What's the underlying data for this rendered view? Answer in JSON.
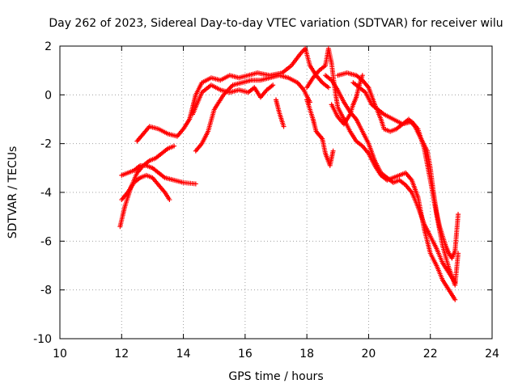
{
  "chart_data": {
    "type": "scatter",
    "title": "Day 262 of 2023, Sidereal Day-to-day VTEC variation (SDTVAR) for receiver wilu",
    "xlabel": "GPS time / hours",
    "ylabel": "SDTVAR / TECUs",
    "xlim": [
      10,
      24
    ],
    "ylim": [
      -10,
      2
    ],
    "xticks": [
      "10",
      "12",
      "14",
      "16",
      "18",
      "20",
      "22",
      "24"
    ],
    "yticks": [
      "-10",
      "-8",
      "-6",
      "-4",
      "-2",
      "0",
      "2"
    ],
    "grid": true,
    "marker": "+",
    "color": "#ff0000",
    "series": [
      {
        "name": "track-1",
        "points": [
          [
            11.95,
            -5.4
          ],
          [
            12.1,
            -4.6
          ],
          [
            12.3,
            -3.8
          ],
          [
            12.5,
            -3.2
          ],
          [
            12.7,
            -2.9
          ],
          [
            12.9,
            -2.7
          ],
          [
            13.1,
            -2.6
          ],
          [
            13.3,
            -2.4
          ],
          [
            13.5,
            -2.2
          ],
          [
            13.7,
            -2.1
          ]
        ]
      },
      {
        "name": "track-2",
        "points": [
          [
            12.0,
            -3.3
          ],
          [
            12.2,
            -3.2
          ],
          [
            12.4,
            -3.1
          ],
          [
            12.6,
            -2.9
          ],
          [
            12.8,
            -2.9
          ],
          [
            13.0,
            -3.0
          ],
          [
            13.2,
            -3.2
          ],
          [
            13.4,
            -3.4
          ],
          [
            13.7,
            -3.5
          ],
          [
            14.0,
            -3.6
          ],
          [
            14.4,
            -3.65
          ]
        ]
      },
      {
        "name": "track-3",
        "points": [
          [
            12.0,
            -4.3
          ],
          [
            12.2,
            -4.0
          ],
          [
            12.4,
            -3.6
          ],
          [
            12.6,
            -3.4
          ],
          [
            12.8,
            -3.3
          ],
          [
            13.0,
            -3.4
          ],
          [
            13.2,
            -3.7
          ],
          [
            13.4,
            -4.0
          ],
          [
            13.55,
            -4.3
          ]
        ]
      },
      {
        "name": "track-4",
        "points": [
          [
            12.5,
            -1.9
          ],
          [
            12.7,
            -1.6
          ],
          [
            12.9,
            -1.3
          ],
          [
            13.2,
            -1.4
          ],
          [
            13.5,
            -1.6
          ],
          [
            13.8,
            -1.7
          ],
          [
            14.0,
            -1.4
          ],
          [
            14.2,
            -1.0
          ],
          [
            14.3,
            -0.5
          ],
          [
            14.4,
            0.0
          ],
          [
            14.6,
            0.5
          ],
          [
            14.9,
            0.7
          ],
          [
            15.2,
            0.6
          ],
          [
            15.5,
            0.8
          ],
          [
            15.8,
            0.7
          ],
          [
            16.1,
            0.8
          ],
          [
            16.4,
            0.9
          ],
          [
            16.8,
            0.8
          ],
          [
            17.2,
            0.9
          ],
          [
            17.5,
            1.2
          ],
          [
            17.8,
            1.7
          ],
          [
            17.95,
            1.9
          ],
          [
            18.1,
            1.2
          ],
          [
            18.3,
            0.8
          ],
          [
            18.5,
            0.5
          ],
          [
            18.7,
            0.3
          ]
        ]
      },
      {
        "name": "track-5",
        "points": [
          [
            14.4,
            -2.3
          ],
          [
            14.6,
            -2.0
          ],
          [
            14.8,
            -1.5
          ],
          [
            15.0,
            -0.6
          ],
          [
            15.3,
            0.0
          ],
          [
            15.6,
            0.4
          ],
          [
            15.9,
            0.5
          ],
          [
            16.2,
            0.6
          ],
          [
            16.5,
            0.6
          ],
          [
            16.8,
            0.7
          ],
          [
            17.1,
            0.8
          ],
          [
            17.4,
            0.7
          ],
          [
            17.7,
            0.5
          ],
          [
            17.9,
            0.2
          ],
          [
            18.1,
            -0.3
          ]
        ]
      },
      {
        "name": "track-6",
        "points": [
          [
            14.3,
            -0.8
          ],
          [
            14.6,
            0.1
          ],
          [
            14.9,
            0.4
          ],
          [
            15.2,
            0.2
          ],
          [
            15.5,
            0.1
          ],
          [
            15.8,
            0.2
          ],
          [
            16.1,
            0.1
          ],
          [
            16.3,
            0.3
          ],
          [
            16.5,
            -0.1
          ],
          [
            16.7,
            0.2
          ],
          [
            16.9,
            0.4
          ]
        ]
      },
      {
        "name": "track-7",
        "points": [
          [
            17.0,
            -0.2
          ],
          [
            17.1,
            -0.7
          ],
          [
            17.25,
            -1.3
          ]
        ]
      },
      {
        "name": "track-8",
        "points": [
          [
            18.0,
            -0.2
          ],
          [
            18.1,
            -0.6
          ],
          [
            18.2,
            -1.0
          ],
          [
            18.3,
            -1.5
          ],
          [
            18.5,
            -1.8
          ],
          [
            18.6,
            -2.4
          ],
          [
            18.75,
            -2.9
          ],
          [
            18.85,
            -2.3
          ]
        ]
      },
      {
        "name": "track-9",
        "points": [
          [
            18.0,
            0.3
          ],
          [
            18.2,
            0.7
          ],
          [
            18.4,
            1.0
          ],
          [
            18.6,
            1.2
          ],
          [
            18.7,
            1.9
          ],
          [
            18.8,
            1.3
          ],
          [
            18.9,
            0.3
          ],
          [
            19.0,
            -0.5
          ],
          [
            19.2,
            -1.0
          ],
          [
            19.4,
            -1.5
          ],
          [
            19.6,
            -1.9
          ],
          [
            19.8,
            -2.1
          ],
          [
            20.0,
            -2.4
          ],
          [
            20.2,
            -2.9
          ],
          [
            20.4,
            -3.3
          ],
          [
            20.6,
            -3.5
          ],
          [
            20.8,
            -3.4
          ],
          [
            21.0,
            -3.3
          ],
          [
            21.2,
            -3.2
          ],
          [
            21.4,
            -3.5
          ],
          [
            21.6,
            -4.2
          ],
          [
            21.8,
            -5.5
          ],
          [
            22.0,
            -6.5
          ],
          [
            22.2,
            -7.0
          ],
          [
            22.4,
            -7.6
          ],
          [
            22.6,
            -8.0
          ],
          [
            22.8,
            -8.4
          ]
        ]
      },
      {
        "name": "track-10",
        "points": [
          [
            18.6,
            0.8
          ],
          [
            18.8,
            0.6
          ],
          [
            19.0,
            0.2
          ],
          [
            19.2,
            -0.3
          ],
          [
            19.4,
            -0.7
          ],
          [
            19.6,
            -1.0
          ],
          [
            19.8,
            -1.5
          ],
          [
            20.0,
            -2.0
          ],
          [
            20.2,
            -2.7
          ],
          [
            20.4,
            -3.2
          ],
          [
            20.6,
            -3.4
          ],
          [
            20.8,
            -3.6
          ],
          [
            21.0,
            -3.5
          ],
          [
            21.2,
            -3.7
          ],
          [
            21.4,
            -4.0
          ],
          [
            21.6,
            -4.6
          ],
          [
            21.8,
            -5.3
          ],
          [
            22.0,
            -5.8
          ],
          [
            22.2,
            -6.3
          ],
          [
            22.4,
            -6.9
          ],
          [
            22.6,
            -7.3
          ],
          [
            22.8,
            -7.7
          ]
        ]
      },
      {
        "name": "track-11",
        "points": [
          [
            19.0,
            0.8
          ],
          [
            19.3,
            0.9
          ],
          [
            19.6,
            0.8
          ],
          [
            19.8,
            0.6
          ],
          [
            20.0,
            0.3
          ],
          [
            20.2,
            -0.4
          ],
          [
            20.4,
            -1.0
          ],
          [
            20.5,
            -1.4
          ],
          [
            20.7,
            -1.5
          ],
          [
            20.9,
            -1.4
          ],
          [
            21.1,
            -1.2
          ],
          [
            21.3,
            -1.0
          ],
          [
            21.5,
            -1.3
          ],
          [
            21.7,
            -1.8
          ],
          [
            21.9,
            -2.3
          ],
          [
            22.0,
            -3.0
          ],
          [
            22.1,
            -4.0
          ],
          [
            22.2,
            -4.8
          ],
          [
            22.3,
            -5.4
          ],
          [
            22.4,
            -5.8
          ],
          [
            22.5,
            -6.2
          ],
          [
            22.6,
            -6.5
          ],
          [
            22.7,
            -6.7
          ],
          [
            22.8,
            -6.4
          ],
          [
            22.9,
            -4.9
          ]
        ]
      },
      {
        "name": "track-12",
        "points": [
          [
            19.5,
            0.5
          ],
          [
            19.7,
            0.3
          ],
          [
            19.9,
            0.1
          ],
          [
            20.1,
            -0.4
          ],
          [
            20.3,
            -0.6
          ],
          [
            20.5,
            -0.8
          ],
          [
            20.8,
            -1.0
          ],
          [
            21.1,
            -1.2
          ],
          [
            21.4,
            -1.1
          ],
          [
            21.6,
            -1.4
          ],
          [
            21.8,
            -2.2
          ],
          [
            22.0,
            -3.5
          ],
          [
            22.2,
            -4.9
          ],
          [
            22.4,
            -6.2
          ],
          [
            22.6,
            -7.1
          ],
          [
            22.8,
            -7.8
          ],
          [
            22.9,
            -6.5
          ]
        ]
      },
      {
        "name": "track-13",
        "points": [
          [
            18.8,
            -0.4
          ],
          [
            19.0,
            -0.9
          ],
          [
            19.2,
            -1.2
          ],
          [
            19.4,
            -0.8
          ],
          [
            19.5,
            -0.4
          ],
          [
            19.6,
            -0.1
          ],
          [
            19.7,
            0.4
          ],
          [
            19.8,
            0.8
          ]
        ]
      }
    ]
  }
}
